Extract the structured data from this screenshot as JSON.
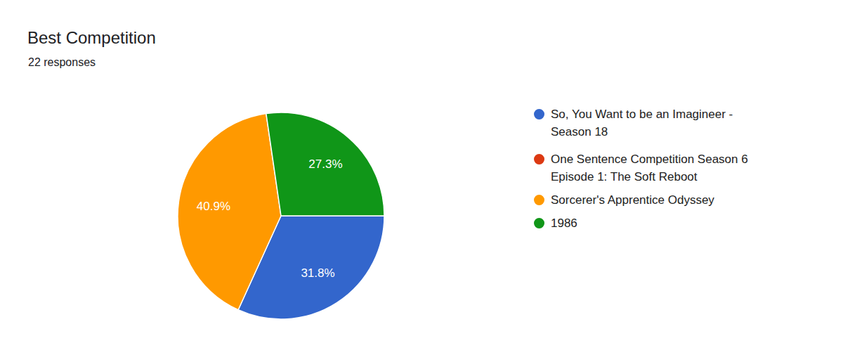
{
  "chart_data": {
    "type": "pie",
    "title": "Best Competition",
    "subtitle": "22 responses",
    "categories": [
      "So, You Want to be an Imagineer - Season 18",
      "One Sentence Competition Season 6 Episode 1: The Soft Reboot",
      "Sorcerer's Apprentice Odyssey",
      "1986"
    ],
    "values": [
      31.8,
      0,
      40.9,
      27.3
    ],
    "value_labels": [
      "31.8%",
      null,
      "40.9%",
      "27.3%"
    ],
    "colors": [
      "#3366cc",
      "#dc3912",
      "#ff9900",
      "#109618"
    ],
    "data_labels": true,
    "legend": "right"
  }
}
